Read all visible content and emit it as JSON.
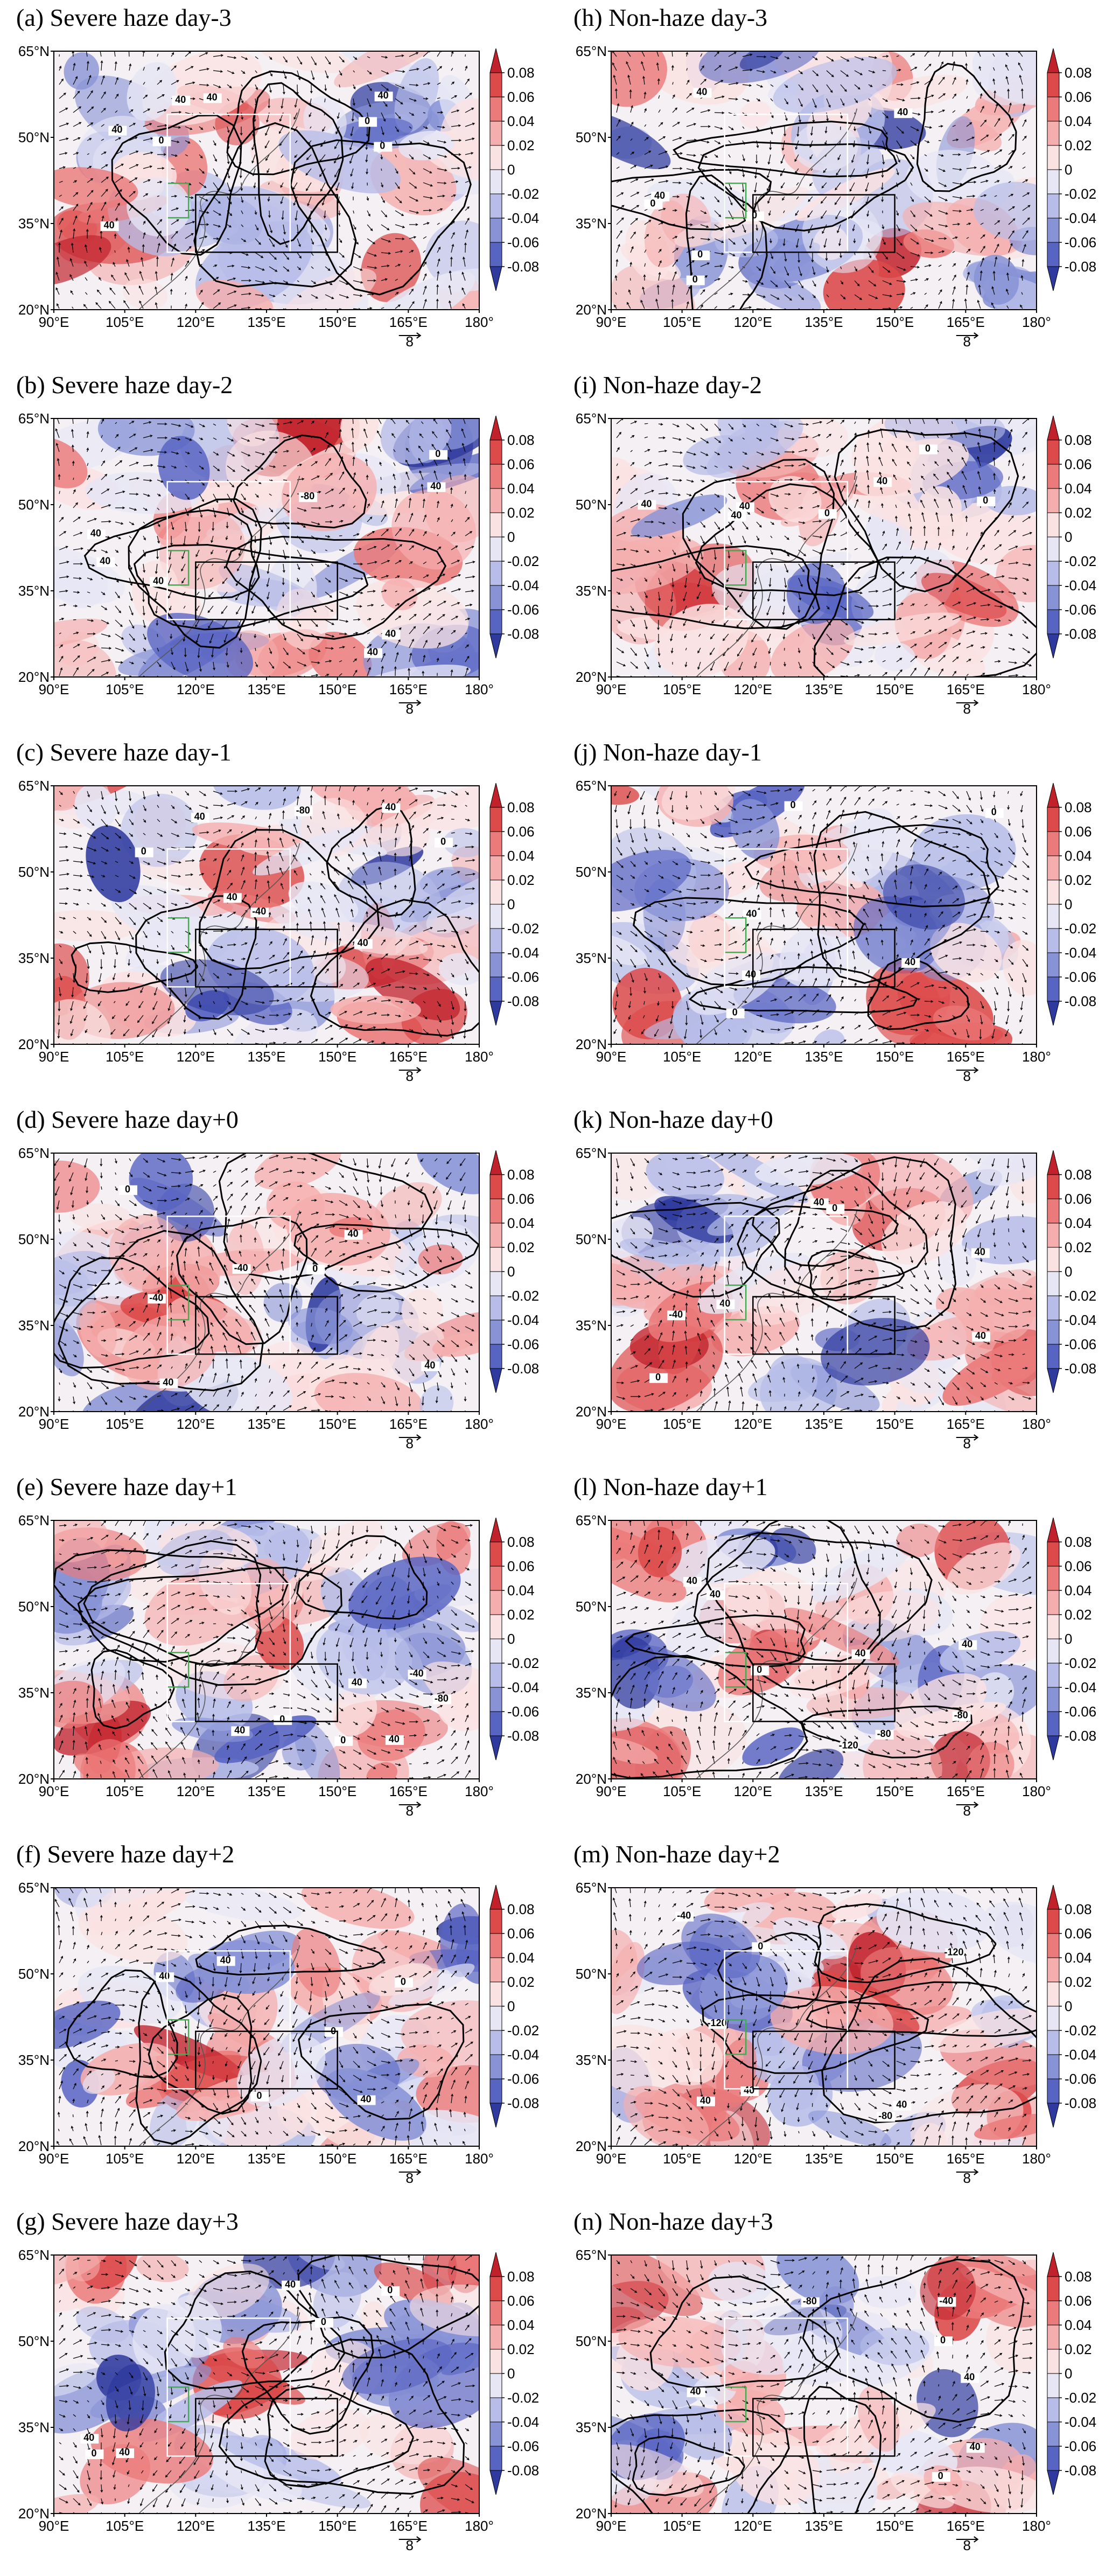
{
  "figure": {
    "panels": [
      {
        "label": "(a) Severe haze day-3",
        "contour_labels": [
          "0",
          "40",
          "40",
          "40",
          "0",
          "40",
          "40",
          "0"
        ]
      },
      {
        "label": "(h) Non-haze day-3",
        "contour_labels": [
          "0",
          "0",
          "40",
          "40",
          "0",
          "40",
          "0"
        ]
      },
      {
        "label": "(b) Severe haze day-2",
        "contour_labels": [
          "40",
          "40",
          "40",
          "-80",
          "40",
          "0",
          "40",
          "40"
        ]
      },
      {
        "label": "(i) Non-haze day-2",
        "contour_labels": [
          "40",
          "0",
          "40",
          "0",
          "40",
          "0",
          "40"
        ]
      },
      {
        "label": "(c) Severe haze day-1",
        "contour_labels": [
          "40",
          "40",
          "0",
          "40",
          "-40",
          "-80",
          "40",
          "0"
        ]
      },
      {
        "label": "(j) Non-haze day-1",
        "contour_labels": [
          "0",
          "40",
          "0",
          "40",
          "40",
          "0"
        ]
      },
      {
        "label": "(d) Severe haze day+0",
        "contour_labels": [
          "40",
          "0",
          "40",
          "-40",
          "0",
          "40",
          "-40"
        ]
      },
      {
        "label": "(k) Non-haze day+0",
        "contour_labels": [
          "40",
          "0",
          "40",
          "-40",
          "40",
          "0",
          "40"
        ]
      },
      {
        "label": "(e) Severe haze day+1",
        "contour_labels": [
          "0",
          "40",
          "-40",
          "-80",
          "40",
          "40",
          "0"
        ]
      },
      {
        "label": "(l) Non-haze day+1",
        "contour_labels": [
          "40",
          "0",
          "40",
          "-80",
          "-120",
          "-80",
          "40",
          "40"
        ]
      },
      {
        "label": "(f) Severe haze day+2",
        "contour_labels": [
          "0",
          "40",
          "0",
          "40",
          "40",
          "0"
        ]
      },
      {
        "label": "(m) Non-haze day+2",
        "contour_labels": [
          "40",
          "-40",
          "-120",
          "-80",
          "-120",
          "40",
          "40",
          "0"
        ]
      },
      {
        "label": "(g) Severe haze day+3",
        "contour_labels": [
          "0",
          "40",
          "0",
          "40",
          "0",
          "40"
        ]
      },
      {
        "label": "(n) Non-haze day+3",
        "contour_labels": [
          "40",
          "40",
          "0",
          "-80",
          "-40",
          "40",
          "0"
        ]
      }
    ],
    "axes": {
      "y_ticks": [
        "65°N",
        "50°N",
        "35°N",
        "20°N"
      ],
      "x_ticks": [
        "90°E",
        "105°E",
        "120°E",
        "135°E",
        "150°E",
        "165°E",
        "180°"
      ],
      "reference_vector_label": "8"
    },
    "colorbar": {
      "ticks": [
        "0.08",
        "0.06",
        "0.04",
        "0.02",
        "0",
        "-0.02",
        "-0.04",
        "-0.06",
        "-0.08"
      ],
      "colors": [
        "#c0212b",
        "#dc4a4a",
        "#eb7a7a",
        "#f5aeae",
        "#fbe2e2",
        "#e6e6f5",
        "#b7bde8",
        "#8893d6",
        "#5864c2",
        "#2e3a9e"
      ]
    },
    "colors": {
      "positive": "#e05a5a",
      "negative": "#3d4fb8",
      "neutral": "#f4f0f4",
      "green_box": "#3fae4f",
      "white_box": "#ffffff",
      "black_box": "#000000"
    }
  }
}
